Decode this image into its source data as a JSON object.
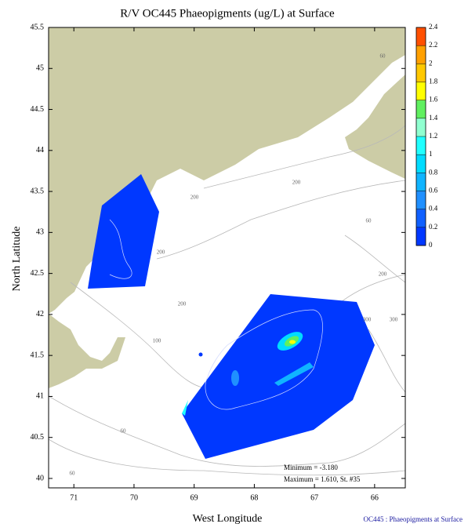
{
  "map": {
    "title": "R/V OC445 Phaeopigments (ug/L) at Surface",
    "xlabel": "West Longitude",
    "ylabel": "North Latitude",
    "xlim": [
      71.42,
      65.49
    ],
    "ylim": [
      39.885,
      45.5
    ],
    "xticks": [
      71,
      70,
      69,
      68,
      67,
      66
    ],
    "yticks": [
      40,
      40.5,
      41,
      41.5,
      42,
      42.5,
      43,
      43.5,
      44,
      44.5,
      45,
      45.5
    ],
    "colorbar": {
      "ticks": [
        0,
        0.2,
        0.4,
        0.6,
        0.8,
        1,
        1.2,
        1.4,
        1.6,
        1.8,
        2,
        2.2,
        2.4
      ],
      "colors": [
        "#0038ff",
        "#1060ff",
        "#2090ff",
        "#10b4ff",
        "#00dcff",
        "#20ffff",
        "#90ffd0",
        "#60f060",
        "#ffff00",
        "#ffc800",
        "#ffa000",
        "#ff5000"
      ]
    },
    "contour_labels": [
      "60",
      "200",
      "60",
      "200",
      "60",
      "200",
      "200",
      "100",
      "300",
      "300",
      "60",
      "200"
    ],
    "minimum": "Minimum = -3.180",
    "maximum": "Maximum = 1.610, St. #35",
    "caption": "OC445 : Phaeopigments at Surface"
  }
}
